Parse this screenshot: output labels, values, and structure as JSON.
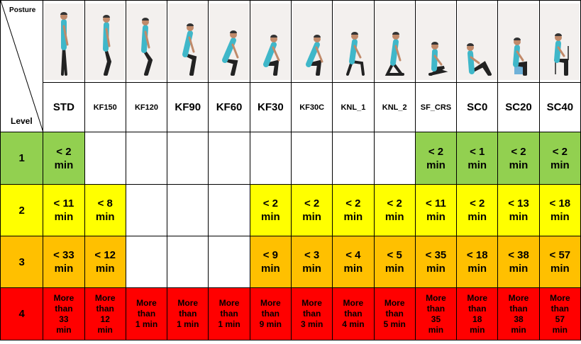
{
  "header": {
    "posture_label": "Posture",
    "level_label": "Level"
  },
  "postures": [
    {
      "code": "STD",
      "size": "big"
    },
    {
      "code": "KF150",
      "size": "small"
    },
    {
      "code": "KF120",
      "size": "small"
    },
    {
      "code": "KF90",
      "size": "big"
    },
    {
      "code": "KF60",
      "size": "big"
    },
    {
      "code": "KF30",
      "size": "big"
    },
    {
      "code": "KF30C",
      "size": "small"
    },
    {
      "code": "KNL_1",
      "size": "small"
    },
    {
      "code": "KNL_2",
      "size": "small"
    },
    {
      "code": "SF_CRS",
      "size": "small"
    },
    {
      "code": "SC0",
      "size": "big"
    },
    {
      "code": "SC20",
      "size": "big"
    },
    {
      "code": "SC40",
      "size": "big"
    }
  ],
  "colors": {
    "green": "#92d050",
    "yellow": "#ffff00",
    "orange": "#ffc000",
    "red": "#ff0000",
    "white": "#ffffff"
  },
  "levels": [
    {
      "level": "1",
      "color": "green",
      "cells": [
        {
          "text": "< 2\nmin",
          "color": "green"
        },
        {
          "text": "",
          "color": "white"
        },
        {
          "text": "",
          "color": "white"
        },
        {
          "text": "",
          "color": "white"
        },
        {
          "text": "",
          "color": "white"
        },
        {
          "text": "",
          "color": "white"
        },
        {
          "text": "",
          "color": "white"
        },
        {
          "text": "",
          "color": "white"
        },
        {
          "text": "",
          "color": "white"
        },
        {
          "text": "< 2\nmin",
          "color": "green"
        },
        {
          "text": "< 1\nmin",
          "color": "green"
        },
        {
          "text": "< 2\nmin",
          "color": "green"
        },
        {
          "text": "< 2\nmin",
          "color": "green"
        }
      ]
    },
    {
      "level": "2",
      "color": "yellow",
      "cells": [
        {
          "text": "< 11\nmin",
          "color": "yellow"
        },
        {
          "text": "< 8\nmin",
          "color": "yellow"
        },
        {
          "text": "",
          "color": "white"
        },
        {
          "text": "",
          "color": "white"
        },
        {
          "text": "",
          "color": "white"
        },
        {
          "text": "< 2\nmin",
          "color": "yellow"
        },
        {
          "text": "< 2\nmin",
          "color": "yellow"
        },
        {
          "text": "< 2\nmin",
          "color": "yellow"
        },
        {
          "text": "< 2\nmin",
          "color": "yellow"
        },
        {
          "text": "< 11\nmin",
          "color": "yellow"
        },
        {
          "text": "< 2\nmin",
          "color": "yellow"
        },
        {
          "text": "< 13\nmin",
          "color": "yellow"
        },
        {
          "text": "< 18\nmin",
          "color": "yellow"
        }
      ]
    },
    {
      "level": "3",
      "color": "orange",
      "cells": [
        {
          "text": "< 33\nmin",
          "color": "orange"
        },
        {
          "text": "< 12\nmin",
          "color": "orange"
        },
        {
          "text": "",
          "color": "white"
        },
        {
          "text": "",
          "color": "white"
        },
        {
          "text": "",
          "color": "white"
        },
        {
          "text": "< 9\nmin",
          "color": "orange"
        },
        {
          "text": "< 3\nmin",
          "color": "orange"
        },
        {
          "text": "< 4\nmin",
          "color": "orange"
        },
        {
          "text": "< 5\nmin",
          "color": "orange"
        },
        {
          "text": "< 35\nmin",
          "color": "orange"
        },
        {
          "text": "< 18\nmin",
          "color": "orange"
        },
        {
          "text": "< 38\nmin",
          "color": "orange"
        },
        {
          "text": "< 57\nmin",
          "color": "orange"
        }
      ]
    },
    {
      "level": "4",
      "color": "red",
      "cells": [
        {
          "text": "More\nthan\n33\nmin",
          "color": "red"
        },
        {
          "text": "More\nthan\n12\nmin",
          "color": "red"
        },
        {
          "text": "More\nthan\n1 min",
          "color": "red"
        },
        {
          "text": "More\nthan\n1 min",
          "color": "red"
        },
        {
          "text": "More\nthan\n1 min",
          "color": "red"
        },
        {
          "text": "More\nthan\n9 min",
          "color": "red"
        },
        {
          "text": "More\nthan\n3 min",
          "color": "red"
        },
        {
          "text": "More\nthan\n4 min",
          "color": "red"
        },
        {
          "text": "More\nthan\n5 min",
          "color": "red"
        },
        {
          "text": "More\nthan\n35\nmin",
          "color": "red"
        },
        {
          "text": "More\nthan\n18\nmin",
          "color": "red"
        },
        {
          "text": "More\nthan\n38\nmin",
          "color": "red"
        },
        {
          "text": "More\nthan\n57\nmin",
          "color": "red"
        }
      ]
    }
  ]
}
